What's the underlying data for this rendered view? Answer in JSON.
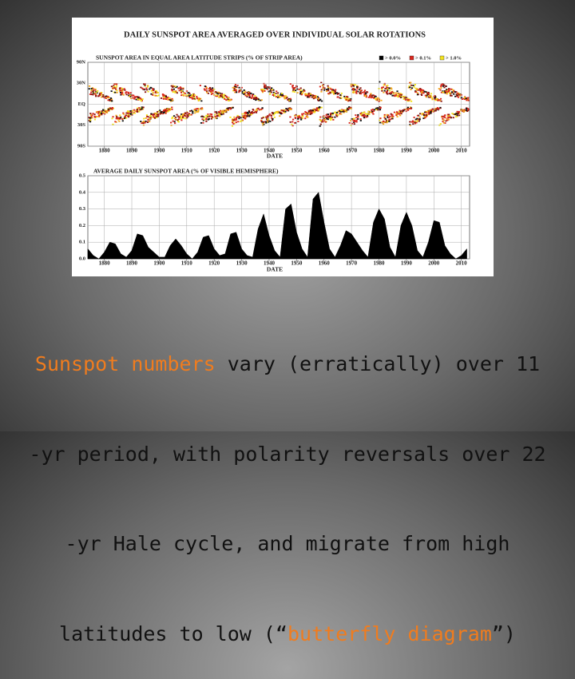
{
  "chart_data": [
    {
      "type": "butterfly",
      "title": "DAILY SUNSPOT AREA AVERAGED OVER INDIVIDUAL SOLAR ROTATIONS",
      "subtitle": "SUNSPOT AREA IN EQUAL AREA LATITUDE STRIPS (% OF STRIP AREA)",
      "xlabel": "DATE",
      "xlim": [
        1874,
        2013
      ],
      "xticks": [
        1880,
        1890,
        1900,
        1910,
        1920,
        1930,
        1940,
        1950,
        1960,
        1970,
        1980,
        1990,
        2000,
        2010
      ],
      "ylim": [
        -90,
        90
      ],
      "yscale": "sin",
      "yticks": [
        {
          "value": 90,
          "label": "90N"
        },
        {
          "value": 30,
          "label": "30N"
        },
        {
          "value": 0,
          "label": "EQ"
        },
        {
          "value": -30,
          "label": "30S"
        },
        {
          "value": -90,
          "label": "90S"
        }
      ],
      "grid": true,
      "legend": [
        {
          "label": "> 0.0%",
          "color": "#000000"
        },
        {
          "label": "> 0.1%",
          "color": "#d8261c"
        },
        {
          "label": "> 1.0%",
          "color": "#f2e21c"
        }
      ]
    },
    {
      "type": "area",
      "subtitle": "AVERAGE DAILY SUNSPOT AREA (% OF VISIBLE HEMISPHERE)",
      "xlabel": "DATE",
      "color": "#000000",
      "xlim": [
        1874,
        2013
      ],
      "xticks": [
        1880,
        1890,
        1900,
        1910,
        1920,
        1930,
        1940,
        1950,
        1960,
        1970,
        1980,
        1990,
        2000,
        2010
      ],
      "ylim": [
        0,
        0.5
      ],
      "yticks": [
        {
          "value": 0,
          "label": "0.0"
        },
        0.1,
        0.2,
        0.3,
        0.4,
        0.5
      ],
      "grid": true,
      "x": [
        1874,
        1876,
        1878,
        1880,
        1882,
        1884,
        1886,
        1888,
        1890,
        1892,
        1894,
        1896,
        1898,
        1900,
        1902,
        1904,
        1906,
        1908,
        1910,
        1912,
        1914,
        1916,
        1918,
        1920,
        1922,
        1924,
        1926,
        1928,
        1930,
        1932,
        1934,
        1936,
        1938,
        1940,
        1942,
        1944,
        1946,
        1948,
        1950,
        1952,
        1954,
        1956,
        1958,
        1960,
        1962,
        1964,
        1966,
        1968,
        1970,
        1972,
        1974,
        1976,
        1978,
        1980,
        1982,
        1984,
        1986,
        1988,
        1990,
        1992,
        1994,
        1996,
        1998,
        2000,
        2002,
        2004,
        2006,
        2008,
        2010,
        2012
      ],
      "values": [
        0.06,
        0.02,
        0.0,
        0.04,
        0.1,
        0.09,
        0.03,
        0.01,
        0.05,
        0.15,
        0.14,
        0.07,
        0.04,
        0.01,
        0.01,
        0.08,
        0.12,
        0.08,
        0.03,
        0.0,
        0.04,
        0.13,
        0.14,
        0.06,
        0.02,
        0.03,
        0.15,
        0.16,
        0.06,
        0.02,
        0.01,
        0.18,
        0.27,
        0.14,
        0.05,
        0.01,
        0.3,
        0.33,
        0.16,
        0.06,
        0.01,
        0.36,
        0.4,
        0.22,
        0.06,
        0.01,
        0.08,
        0.17,
        0.15,
        0.1,
        0.05,
        0.01,
        0.22,
        0.3,
        0.24,
        0.07,
        0.01,
        0.2,
        0.28,
        0.2,
        0.05,
        0.01,
        0.1,
        0.23,
        0.22,
        0.08,
        0.03,
        0.0,
        0.02,
        0.06
      ]
    }
  ],
  "caption": [
    [
      "Sunspot numbers",
      " vary (erratically) over 11"
    ],
    [
      "-yr period, with polarity reversals over 22"
    ],
    [
      "-yr Hale cycle, and migrate from high"
    ],
    [
      "latitudes to low (“",
      "butterfly diagram",
      "”)"
    ]
  ]
}
